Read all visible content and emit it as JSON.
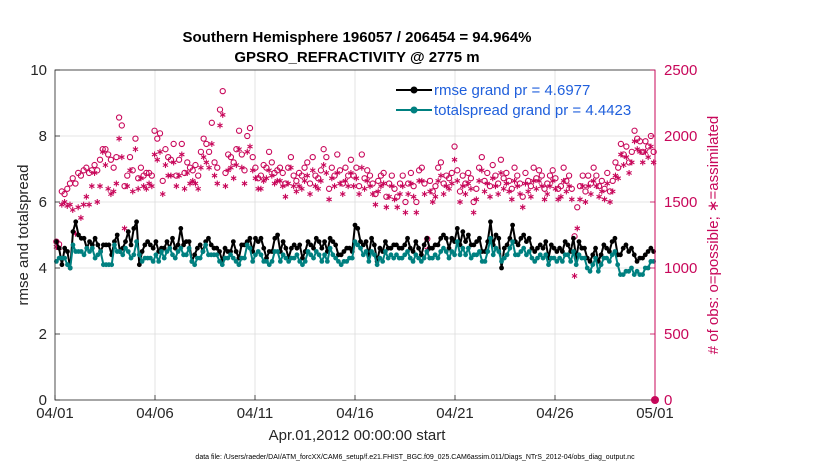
{
  "chart_data": {
    "type": "line",
    "title": "Southern Hemisphere 196057 / 206454 = 94.964%",
    "subtitle": "GPSRO_REFRACTIVITY @ 2775 m",
    "xlabel": "Apr.01,2012 00:00:00 start",
    "ylabel": "rmse and totalspread",
    "y2label": "# of obs: o=possible; ∗=assimilated",
    "footnote": "data file: /Users/raeder/DAI/ATM_forcXX/CAM6_setup/f.e21.FHIST_BGC.f09_025.CAM6assim.011/Diags_NTrS_2012-04/obs_diag_output.nc",
    "x_tick_labels": [
      "04/01",
      "04/06",
      "04/11",
      "04/16",
      "04/21",
      "04/26",
      "05/01"
    ],
    "x_tick_days": [
      0,
      5,
      10,
      15,
      20,
      25,
      30
    ],
    "xlim": [
      0,
      30
    ],
    "ylim": [
      0,
      10
    ],
    "y_ticks": [
      0,
      2,
      4,
      6,
      8,
      10
    ],
    "y2lim": [
      0,
      2500
    ],
    "y2_ticks": [
      0,
      500,
      1000,
      1500,
      2000,
      2500
    ],
    "grid": true,
    "legend_position": "top-right",
    "colors": {
      "rmse": "#000000",
      "spread": "#008080",
      "obs": "#c8075a",
      "legend_text": "#1f5fdc"
    },
    "series": [
      {
        "name": "rmse grand pr = 4.6977",
        "key": "rmse",
        "values": [
          4.8,
          4.6,
          4.1,
          4.6,
          4.5,
          4.0,
          5.1,
          5.4,
          5.0,
          4.9,
          4.9,
          4.6,
          4.8,
          4.7,
          4.9,
          4.7,
          4.5,
          4.7,
          4.7,
          4.7,
          4.4,
          4.8,
          5.0,
          4.5,
          4.6,
          4.8,
          5.1,
          4.7,
          5.2,
          5.4,
          4.1,
          4.5,
          4.7,
          4.8,
          4.7,
          4.6,
          4.8,
          4.5,
          4.6,
          4.6,
          4.8,
          4.6,
          4.9,
          4.6,
          4.7,
          5.2,
          4.7,
          4.8,
          4.8,
          4.2,
          4.4,
          4.6,
          4.7,
          4.5,
          4.8,
          4.9,
          4.7,
          4.6,
          4.6,
          4.5,
          4.2,
          4.6,
          4.5,
          4.5,
          4.8,
          4.5,
          4.3,
          4.7,
          4.7,
          4.8,
          4.9,
          4.5,
          4.9,
          4.8,
          4.9,
          4.6,
          4.3,
          4.5,
          4.5,
          4.9,
          5.0,
          4.5,
          4.8,
          4.6,
          4.3,
          4.6,
          4.7,
          4.6,
          4.7,
          4.3,
          4.5,
          4.8,
          4.7,
          4.6,
          4.9,
          4.8,
          4.6,
          4.8,
          4.5,
          4.9,
          4.8,
          4.7,
          4.4,
          4.4,
          4.5,
          4.6,
          4.6,
          4.5,
          5.3,
          5.2,
          4.8,
          4.7,
          4.8,
          4.4,
          4.9,
          4.7,
          4.2,
          4.6,
          4.5,
          4.8,
          4.6,
          4.6,
          4.7,
          4.7,
          4.6,
          4.6,
          4.7,
          4.9,
          4.6,
          4.5,
          4.8,
          4.6,
          4.4,
          4.7,
          4.9,
          4.6,
          4.6,
          4.7,
          4.7,
          4.9,
          5.0,
          4.9,
          4.6,
          4.9,
          4.8,
          5.2,
          4.7,
          5.1,
          4.8,
          5.0,
          4.7,
          4.7,
          4.8,
          4.9,
          4.5,
          4.5,
          4.8,
          5.4,
          4.7,
          5.0,
          4.9,
          4.0,
          4.6,
          4.7,
          4.9,
          5.3,
          4.8,
          4.7,
          4.9,
          5.0,
          4.8,
          4.9,
          4.6,
          4.5,
          4.6,
          4.7,
          4.6,
          4.8,
          4.3,
          4.7,
          4.6,
          4.5,
          4.6,
          4.5,
          4.8,
          4.7,
          4.5,
          4.9,
          4.3,
          4.8,
          4.6,
          4.6,
          4.3,
          4.2,
          4.4,
          4.6,
          4.2,
          4.4,
          4.7,
          4.6,
          4.5,
          4.8,
          4.9,
          4.4,
          4.4,
          4.6,
          4.7,
          4.5,
          4.6,
          4.4,
          4.2,
          4.3,
          4.3,
          4.4,
          4.5,
          4.6,
          4.5
        ]
      },
      {
        "name": "totalspread grand pr = 4.4423",
        "key": "spread",
        "values": [
          4.2,
          4.3,
          4.3,
          4.3,
          4.1,
          4.0,
          4.7,
          4.5,
          4.5,
          4.5,
          4.4,
          4.6,
          4.5,
          4.6,
          4.3,
          4.4,
          4.5,
          4.1,
          4.1,
          4.1,
          4.1,
          4.7,
          4.5,
          4.5,
          4.4,
          4.6,
          4.5,
          4.3,
          4.4,
          4.8,
          4.4,
          4.2,
          4.3,
          4.3,
          4.3,
          4.2,
          4.4,
          4.2,
          4.5,
          4.3,
          4.5,
          4.6,
          4.4,
          4.3,
          4.5,
          4.6,
          4.4,
          4.4,
          4.6,
          4.2,
          4.1,
          4.3,
          4.3,
          4.5,
          4.7,
          4.4,
          4.4,
          4.4,
          4.4,
          4.2,
          4.1,
          4.3,
          4.3,
          4.4,
          4.3,
          4.2,
          4.1,
          4.3,
          4.3,
          4.7,
          4.6,
          4.2,
          4.4,
          4.5,
          4.4,
          4.2,
          4.2,
          4.1,
          4.2,
          4.5,
          4.5,
          4.2,
          4.4,
          4.3,
          4.2,
          4.3,
          4.3,
          4.4,
          4.2,
          4.1,
          4.2,
          4.5,
          4.4,
          4.3,
          4.5,
          4.4,
          4.2,
          4.4,
          4.2,
          4.6,
          4.4,
          4.3,
          4.2,
          4.1,
          4.2,
          4.2,
          4.3,
          4.3,
          4.8,
          4.7,
          4.6,
          4.4,
          4.5,
          4.2,
          4.5,
          4.4,
          4.1,
          4.3,
          4.2,
          4.5,
          4.3,
          4.4,
          4.3,
          4.4,
          4.3,
          4.3,
          4.4,
          4.5,
          4.3,
          4.2,
          4.4,
          4.3,
          4.2,
          4.3,
          4.5,
          4.3,
          4.3,
          4.4,
          4.3,
          4.5,
          4.6,
          4.5,
          4.3,
          4.5,
          4.4,
          4.8,
          4.4,
          4.6,
          4.4,
          4.6,
          4.3,
          4.4,
          4.4,
          4.5,
          4.2,
          4.2,
          4.5,
          4.9,
          4.4,
          4.6,
          4.5,
          4.2,
          4.3,
          4.4,
          4.6,
          4.8,
          4.4,
          4.4,
          4.5,
          4.6,
          4.4,
          4.5,
          4.3,
          4.2,
          4.3,
          4.4,
          4.3,
          4.4,
          4.1,
          4.3,
          4.3,
          4.2,
          4.3,
          4.2,
          4.4,
          4.4,
          4.2,
          4.5,
          4.1,
          4.4,
          4.3,
          4.3,
          4.0,
          3.9,
          4.1,
          4.3,
          3.9,
          4.1,
          4.3,
          4.3,
          4.2,
          4.4,
          4.5,
          4.1,
          3.8,
          3.8,
          3.9,
          3.9,
          4.0,
          3.8,
          3.9,
          3.8,
          3.8,
          4.0,
          4.0,
          4.2,
          4.2
        ]
      },
      {
        "name": "obs possible",
        "key": "possible",
        "axis": "right",
        "values": [
          1200,
          1180,
          1580,
          1560,
          1600,
          1640,
          1680,
          1640,
          1720,
          1700,
          1740,
          1760,
          1720,
          1740,
          1780,
          1740,
          1820,
          1900,
          1900,
          1860,
          1820,
          1760,
          1840,
          2140,
          2080,
          1620,
          1700,
          1840,
          1740,
          1980,
          1680,
          1760,
          1700,
          1720,
          1720,
          1700,
          2040,
          1980,
          2020,
          1660,
          1900,
          1840,
          1820,
          1940,
          1700,
          1820,
          1940,
          1720,
          1800,
          1760,
          1740,
          1780,
          1700,
          1880,
          1980,
          1940,
          1880,
          2100,
          1800,
          1760,
          2200,
          2340,
          1720,
          1860,
          1840,
          1800,
          1900,
          2040,
          1860,
          1740,
          2000,
          2060,
          1840,
          1760,
          1680,
          1700,
          1780,
          1760,
          1880,
          1800,
          1720,
          1740,
          1760,
          1720,
          1640,
          1760,
          1840,
          1700,
          1660,
          1720,
          1700,
          1760,
          1800,
          1640,
          1840,
          1700,
          1680,
          1740,
          1900,
          1840,
          1600,
          1760,
          1700,
          1860,
          1740,
          1640,
          1760,
          1700,
          1820,
          1700,
          1760,
          1620,
          1860,
          1680,
          1740,
          1700,
          1640,
          1560,
          1660,
          1700,
          1720,
          1540,
          1640,
          1700,
          1600,
          1540,
          1640,
          1700,
          1500,
          1640,
          1720,
          1620,
          1500,
          1740,
          1760,
          1640,
          1220,
          1660,
          1580,
          1620,
          1760,
          1800,
          1640,
          1700,
          1680,
          1720,
          1920,
          1740,
          1580,
          1700,
          1640,
          1720,
          1680,
          1500,
          1600,
          1760,
          1840,
          1660,
          1720,
          1620,
          1780,
          1700,
          1640,
          1820,
          1680,
          1720,
          1660,
          1600,
          1760,
          1700,
          1640,
          1540,
          1720,
          1660,
          1620,
          1760,
          1680,
          1740,
          1700,
          1600,
          1640,
          1700,
          1740,
          1680,
          1600,
          1620,
          1760,
          1660,
          1700,
          1600,
          1240,
          1460,
          1620,
          1700,
          1580,
          1700,
          1640,
          1760,
          1700,
          1620,
          1660,
          1600,
          1720,
          1580,
          1660,
          1800,
          1760,
          1940,
          1860,
          1920,
          1800,
          1880,
          2040,
          1980,
          1960,
          1880,
          1960,
          1920,
          2000,
          1880
        ]
      },
      {
        "name": "obs assimilated",
        "key": "assimilated",
        "axis": "right",
        "values": [
          1160,
          1150,
          1480,
          1500,
          1470,
          1480,
          1440,
          1260,
          1460,
          1380,
          1480,
          1540,
          1480,
          1620,
          1720,
          1500,
          1620,
          1880,
          1780,
          1600,
          1560,
          1580,
          1640,
          1980,
          1840,
          1300,
          1620,
          1740,
          1580,
          1900,
          1600,
          1680,
          1620,
          1600,
          1640,
          1620,
          1860,
          1820,
          1880,
          1560,
          1780,
          1700,
          1700,
          1800,
          1620,
          1700,
          1860,
          1600,
          1720,
          1640,
          1660,
          1640,
          1600,
          1760,
          1840,
          1800,
          1760,
          1940,
          1700,
          1640,
          2080,
          2160,
          1620,
          1740,
          1760,
          1680,
          1780,
          1900,
          1760,
          1640,
          1880,
          1920,
          1740,
          1680,
          1600,
          1600,
          1660,
          1680,
          1740,
          1700,
          1640,
          1660,
          1660,
          1620,
          1540,
          1640,
          1760,
          1620,
          1580,
          1620,
          1600,
          1660,
          1700,
          1560,
          1740,
          1620,
          1600,
          1660,
          1780,
          1720,
          1520,
          1680,
          1620,
          1720,
          1640,
          1560,
          1660,
          1620,
          1720,
          1620,
          1680,
          1560,
          1760,
          1600,
          1660,
          1620,
          1560,
          1480,
          1580,
          1620,
          1640,
          1460,
          1540,
          1620,
          1520,
          1460,
          1560,
          1620,
          1420,
          1560,
          1640,
          1540,
          1420,
          1660,
          1660,
          1560,
          1140,
          1580,
          1500,
          1540,
          1660,
          1700,
          1560,
          1620,
          1600,
          1640,
          1820,
          1660,
          1500,
          1620,
          1560,
          1640,
          1600,
          1420,
          1520,
          1660,
          1740,
          1580,
          1640,
          1540,
          1680,
          1620,
          1560,
          1720,
          1600,
          1640,
          1580,
          1520,
          1660,
          1620,
          1560,
          1460,
          1640,
          1580,
          1540,
          1660,
          1600,
          1660,
          1620,
          1520,
          1560,
          1620,
          1660,
          1600,
          1520,
          1540,
          1660,
          1580,
          1620,
          1520,
          940,
          1300,
          1520,
          1620,
          1500,
          1620,
          1560,
          1660,
          1620,
          1540,
          1580,
          1520,
          1640,
          1500,
          1580,
          1700,
          1680,
          1860,
          1780,
          1840,
          1720,
          1800,
          1960,
          1900,
          1880,
          1800,
          1880,
          1840,
          1920,
          1800
        ]
      }
    ]
  }
}
